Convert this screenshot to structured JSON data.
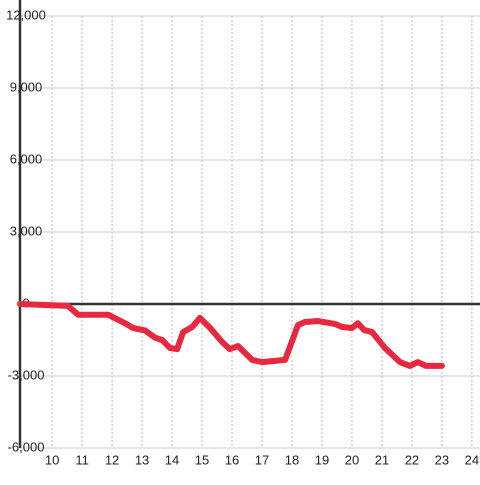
{
  "chart_data": {
    "type": "line",
    "x": [
      8.93,
      10.53,
      10.87,
      11.87,
      12.43,
      12.7,
      13.1,
      13.43,
      13.67,
      13.93,
      14.17,
      14.37,
      14.67,
      14.93,
      15.27,
      15.67,
      15.93,
      16.2,
      16.67,
      17.0,
      17.77,
      18.2,
      18.43,
      18.87,
      19.43,
      19.67,
      20.0,
      20.2,
      20.4,
      20.67,
      21.1,
      21.6,
      21.93,
      22.2,
      22.47,
      23.0
    ],
    "series": [
      {
        "color": "#e8283e",
        "values": [
          0,
          -80,
          -450,
          -450,
          -800,
          -1000,
          -1100,
          -1400,
          -1500,
          -1830,
          -1880,
          -1170,
          -960,
          -580,
          -1000,
          -1580,
          -1880,
          -1750,
          -2330,
          -2420,
          -2330,
          -880,
          -750,
          -710,
          -830,
          -960,
          -1000,
          -800,
          -1080,
          -1170,
          -1830,
          -2420,
          -2580,
          -2420,
          -2580,
          -2580
        ]
      }
    ],
    "xlim": [
      8.93,
      24.27
    ],
    "ylim": [
      -6000,
      12000
    ],
    "xticks": [
      10,
      11,
      12,
      13,
      14,
      15,
      16,
      17,
      18,
      19,
      20,
      21,
      22,
      23,
      24
    ],
    "yticks": [
      {
        "value": 12000,
        "label": "12,000"
      },
      {
        "value": 9000,
        "label": "9,000"
      },
      {
        "value": 6000,
        "label": "6,000"
      },
      {
        "value": 3000,
        "label": "3,000"
      },
      0,
      {
        "value": -3000,
        "label": "-3,000"
      },
      {
        "value": -6000,
        "label": "-6,000"
      }
    ],
    "grid": true
  }
}
